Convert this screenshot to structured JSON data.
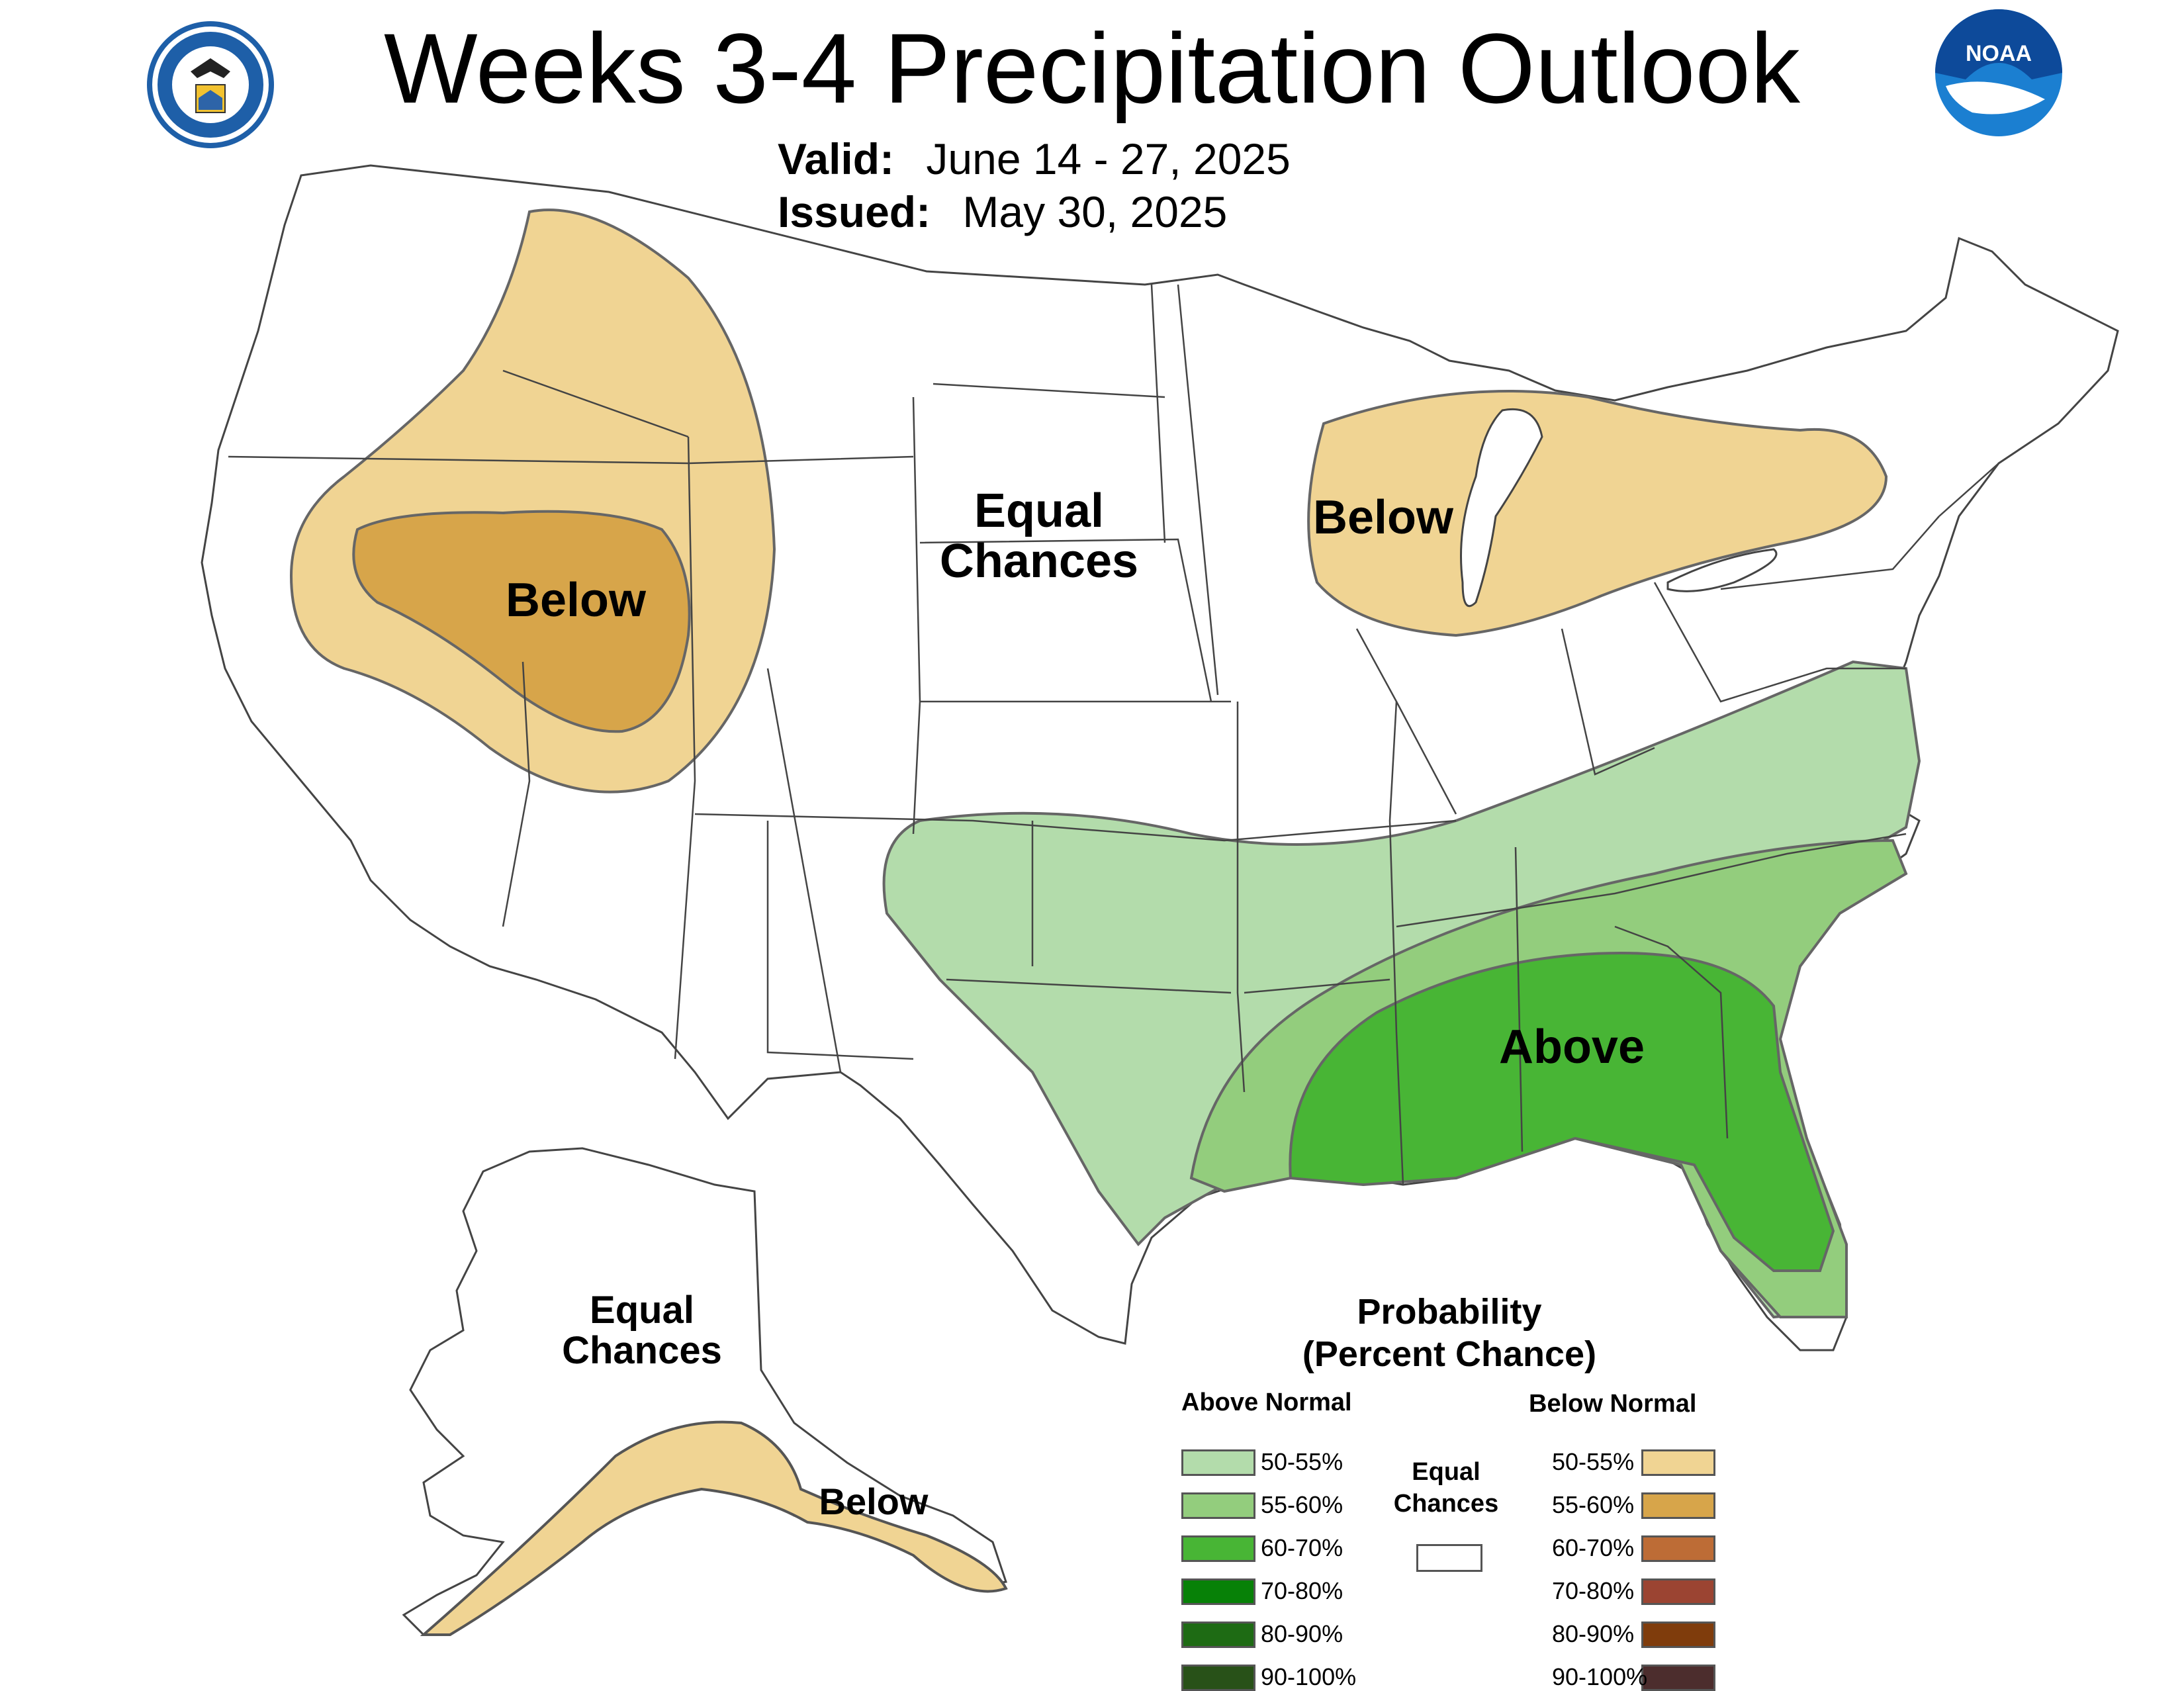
{
  "header": {
    "title": "Weeks 3-4 Precipitation Outlook",
    "valid_label": "Valid:",
    "valid_value": "June 14 - 27, 2025",
    "issued_label": "Issued:",
    "issued_value": "May 30, 2025"
  },
  "logos": {
    "commerce_seal": "department-of-commerce-seal",
    "noaa": "NOAA"
  },
  "map_labels": {
    "west_below": "Below",
    "central_equal_1": "Equal",
    "central_equal_2": "Chances",
    "great_lakes_below": "Below",
    "southeast_above": "Above",
    "alaska_equal_1": "Equal",
    "alaska_equal_2": "Chances",
    "alaska_below": "Below"
  },
  "legend": {
    "title_1": "Probability",
    "title_2": "(Percent Chance)",
    "above_header": "Above Normal",
    "below_header": "Below Normal",
    "equal_1": "Equal",
    "equal_2": "Chances",
    "above": [
      {
        "label": "50-55%",
        "color": "#b3dcab"
      },
      {
        "label": "55-60%",
        "color": "#93cd7d"
      },
      {
        "label": "60-70%",
        "color": "#48b535"
      },
      {
        "label": "70-80%",
        "color": "#078107"
      },
      {
        "label": "80-90%",
        "color": "#1e6b14"
      },
      {
        "label": "90-100%",
        "color": "#285118"
      }
    ],
    "below": [
      {
        "label": "50-55%",
        "color": "#f0d493"
      },
      {
        "label": "55-60%",
        "color": "#d7a54a"
      },
      {
        "label": "60-70%",
        "color": "#bd6c36"
      },
      {
        "label": "70-80%",
        "color": "#9b4432"
      },
      {
        "label": "80-90%",
        "color": "#7f3c0c"
      },
      {
        "label": "90-100%",
        "color": "#4c2d2d"
      }
    ]
  },
  "colors": {
    "above_50": "#b3dcab",
    "above_55": "#93cd7d",
    "above_60": "#48b535",
    "below_50": "#f0d493",
    "below_55": "#d7a54a",
    "outline": "#666666",
    "state_line": "#444444"
  }
}
